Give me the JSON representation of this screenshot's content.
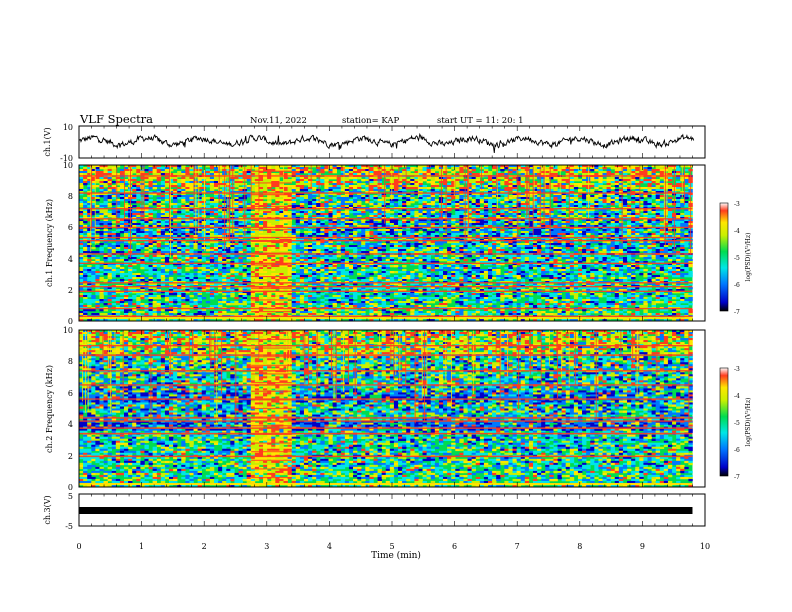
{
  "header": {
    "title": "VLF Spectra",
    "date": "Nov.11, 2022",
    "station": "station= KAP",
    "start": "start  UT =  11: 20: 1"
  },
  "chart_data": [
    {
      "type": "line",
      "name": "ch1-waveform",
      "ylabel": "ch.1(V)",
      "ylim": [
        -10,
        10
      ],
      "y_tick_labels": [
        "10",
        "-10"
      ],
      "xlim": [
        0,
        10
      ],
      "y_mean": 0.5,
      "y_noise_range": [
        -4,
        4
      ]
    },
    {
      "type": "heatmap",
      "name": "ch1-spectrogram",
      "ylabel": "ch.1 Frequency (kHz)",
      "ylim": [
        0,
        10
      ],
      "y_tick_labels": [
        "0",
        "2",
        "4",
        "6",
        "8",
        "10"
      ],
      "xlim": [
        0,
        9.8
      ],
      "colorbar": {
        "label": "log(PSD)(V²/Hz)",
        "range": [
          -7,
          -3
        ],
        "ticks": [
          "-3",
          "-4",
          "-5",
          "-6",
          "-7"
        ]
      },
      "bright_segment_min": [
        2.75,
        3.4
      ],
      "red_lines_khz": [
        0.3,
        0.8,
        1.9,
        2.2,
        2.45,
        3.7,
        4.3,
        5.15,
        5.35,
        6.0,
        6.55,
        7.2,
        8.2,
        9.3
      ]
    },
    {
      "type": "heatmap",
      "name": "ch2-spectrogram",
      "ylabel": "ch.2 Frequency (kHz)",
      "ylim": [
        0,
        10
      ],
      "y_tick_labels": [
        "0",
        "2",
        "4",
        "6",
        "8",
        "10"
      ],
      "xlim": [
        0,
        9.8
      ],
      "colorbar": {
        "label": "log(PSD)(V²/Hz)",
        "range": [
          -7,
          -3
        ],
        "ticks": [
          "-3",
          "-4",
          "-5",
          "-6",
          "-7"
        ]
      },
      "bright_segment_min": [
        2.75,
        3.4
      ],
      "red_lines_khz": [
        0.2,
        1.95,
        3.4,
        3.75,
        4.2,
        4.4,
        5.6,
        6.5,
        7.4,
        8.4,
        9.0
      ]
    },
    {
      "type": "line",
      "name": "ch3-waveform",
      "ylabel": "ch.3(V)",
      "ylim": [
        -5,
        5
      ],
      "y_tick_labels": [
        "5",
        "-5"
      ],
      "xlim": [
        0,
        9.8
      ],
      "y_mean": -0.5
    }
  ],
  "x_axis": {
    "label": "Time  (min)",
    "tick_labels": [
      "0",
      "1",
      "2",
      "3",
      "4",
      "5",
      "6",
      "7",
      "8",
      "9",
      "10"
    ]
  },
  "colors": {
    "colormap": [
      "#0000c8",
      "#0078ff",
      "#00e6e6",
      "#00dc50",
      "#c8f000",
      "#ffe600",
      "#ff3c1e"
    ],
    "axis": "#000000"
  }
}
